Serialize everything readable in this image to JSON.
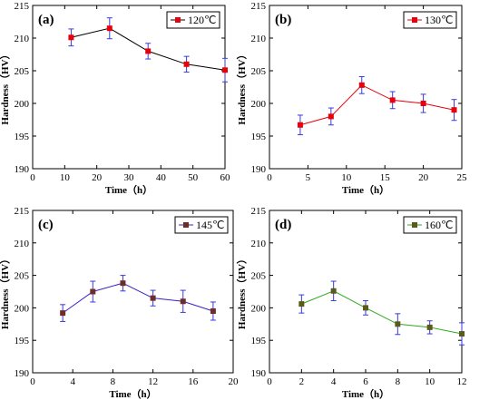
{
  "chart_data": [
    {
      "type": "line",
      "panel_label": "(a)",
      "xlabel": "Time（h）",
      "ylabel": "Hardness（HV）",
      "xlim": [
        0,
        60
      ],
      "xticks": [
        0,
        10,
        20,
        30,
        40,
        50,
        60
      ],
      "ylim": [
        190,
        215
      ],
      "yticks": [
        190,
        195,
        200,
        205,
        210,
        215
      ],
      "legend_position": "top-right",
      "series": [
        {
          "name": "120℃",
          "color": "#000000",
          "marker_color": "#e8000b",
          "errbar_color": "#3a3adb",
          "x": [
            12,
            24,
            36,
            48,
            60
          ],
          "y": [
            210.1,
            211.5,
            208.0,
            206.0,
            205.1
          ],
          "err": [
            1.3,
            1.6,
            1.2,
            1.2,
            1.8
          ]
        }
      ]
    },
    {
      "type": "line",
      "panel_label": "(b)",
      "xlabel": "Time（h）",
      "ylabel": "Hardness（HV）",
      "xlim": [
        0,
        25
      ],
      "xticks": [
        0,
        5,
        10,
        15,
        20,
        25
      ],
      "ylim": [
        190,
        215
      ],
      "yticks": [
        190,
        195,
        200,
        205,
        210,
        215
      ],
      "legend_position": "top-right",
      "series": [
        {
          "name": "130℃",
          "color": "#e8000b",
          "marker_color": "#e8000b",
          "errbar_color": "#3a3adb",
          "x": [
            4,
            8,
            12,
            16,
            20,
            24
          ],
          "y": [
            196.7,
            198.0,
            202.8,
            200.5,
            200.0,
            199.0
          ],
          "err": [
            1.5,
            1.3,
            1.3,
            1.3,
            1.4,
            1.6
          ]
        }
      ]
    },
    {
      "type": "line",
      "panel_label": "(c)",
      "xlabel": "Time（h）",
      "ylabel": "Hardness（HV）",
      "xlim": [
        0,
        20
      ],
      "xticks": [
        0,
        4,
        8,
        12,
        16,
        20
      ],
      "ylim": [
        190,
        215
      ],
      "yticks": [
        190,
        195,
        200,
        205,
        210,
        215
      ],
      "legend_position": "top-right",
      "series": [
        {
          "name": "145℃",
          "color": "#3b1ec8",
          "marker_color": "#6e2c2c",
          "errbar_color": "#3a3adb",
          "x": [
            3,
            6,
            9,
            12,
            15,
            18
          ],
          "y": [
            199.2,
            202.5,
            203.8,
            201.5,
            201.0,
            199.5
          ],
          "err": [
            1.3,
            1.6,
            1.2,
            1.2,
            1.7,
            1.4
          ]
        }
      ]
    },
    {
      "type": "line",
      "panel_label": "(d)",
      "xlabel": "Time（h）",
      "ylabel": "Hardness（HV）",
      "xlim": [
        0,
        12
      ],
      "xticks": [
        0,
        2,
        4,
        6,
        8,
        10,
        12
      ],
      "ylim": [
        190,
        215
      ],
      "yticks": [
        190,
        195,
        200,
        205,
        210,
        215
      ],
      "legend_position": "top-right",
      "series": [
        {
          "name": "160℃",
          "color": "#2eaa1e",
          "marker_color": "#5a5a1a",
          "errbar_color": "#3a3adb",
          "x": [
            2,
            4,
            6,
            8,
            10,
            12
          ],
          "y": [
            200.6,
            202.6,
            200.0,
            197.5,
            197.0,
            196.0
          ],
          "err": [
            1.4,
            1.5,
            1.1,
            1.6,
            1.0,
            1.7
          ]
        }
      ]
    }
  ]
}
